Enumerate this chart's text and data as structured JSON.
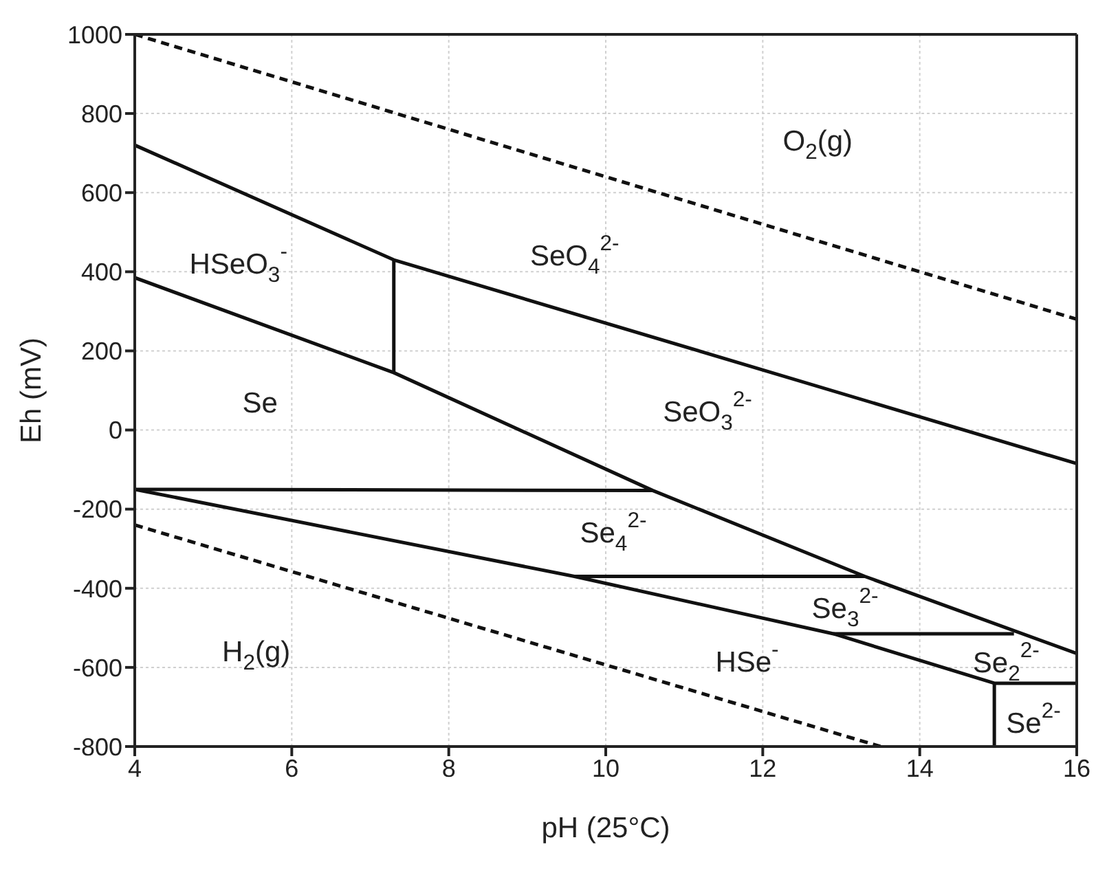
{
  "chart_data": {
    "type": "line",
    "xlabel": "pH (25°C)",
    "ylabel": "Eh (mV)",
    "xlim": [
      4,
      16
    ],
    "xticks": [
      4,
      6,
      8,
      10,
      12,
      14,
      16
    ],
    "ylim": [
      -800,
      1000
    ],
    "yticks": [
      -800,
      -600,
      -400,
      -200,
      0,
      200,
      400,
      600,
      800,
      1000
    ],
    "grid": true,
    "marker": "none",
    "series": [
      {
        "color": "#111111",
        "line_style": "dashed",
        "x": [
          4,
          16
        ],
        "values": [
          1000,
          280
        ]
      },
      {
        "color": "#111111",
        "line_style": "dashed",
        "x": [
          4,
          13.5
        ],
        "values": [
          -240,
          -800
        ]
      },
      {
        "color": "#111111",
        "line_style": "solid",
        "x": [
          4,
          7.3,
          16
        ],
        "values": [
          720,
          430,
          -85
        ]
      },
      {
        "color": "#111111",
        "line_style": "solid",
        "x": [
          7.3,
          7.3
        ],
        "values": [
          430,
          145
        ]
      },
      {
        "color": "#111111",
        "line_style": "solid",
        "x": [
          4,
          7.3,
          10.6,
          13.3,
          16
        ],
        "values": [
          385,
          145,
          -153,
          -370,
          -565
        ]
      },
      {
        "color": "#111111",
        "line_style": "solid",
        "x": [
          4,
          10.6
        ],
        "values": [
          -150,
          -153
        ]
      },
      {
        "color": "#111111",
        "line_style": "solid",
        "x": [
          4,
          9.6,
          12.9,
          14.95,
          16
        ],
        "values": [
          -150,
          -370,
          -515,
          -640,
          -640
        ]
      },
      {
        "color": "#111111",
        "line_style": "solid",
        "x": [
          9.6,
          13.3
        ],
        "values": [
          -370,
          -370
        ]
      },
      {
        "color": "#111111",
        "line_style": "solid",
        "x": [
          12.9,
          15.2
        ],
        "values": [
          -515,
          -515
        ]
      },
      {
        "color": "#111111",
        "line_style": "solid",
        "x": [
          14.95,
          14.95
        ],
        "values": [
          -640,
          -800
        ]
      }
    ],
    "annotations": [
      "O$_{2}$(g)",
      "HSeO$_{3}$$^{-}$",
      "SeO$_{4}$$^{2-}$",
      "Se",
      "SeO$_{3}$$^{2-}$",
      "Se$_{4}$$^{2-}$",
      "Se$_{3}$$^{2-}$",
      "HSe$^{-}$",
      "Se$_{2}$$^{2-}$",
      "Se$^{2-}$",
      "H$_{2}$(g)"
    ]
  }
}
